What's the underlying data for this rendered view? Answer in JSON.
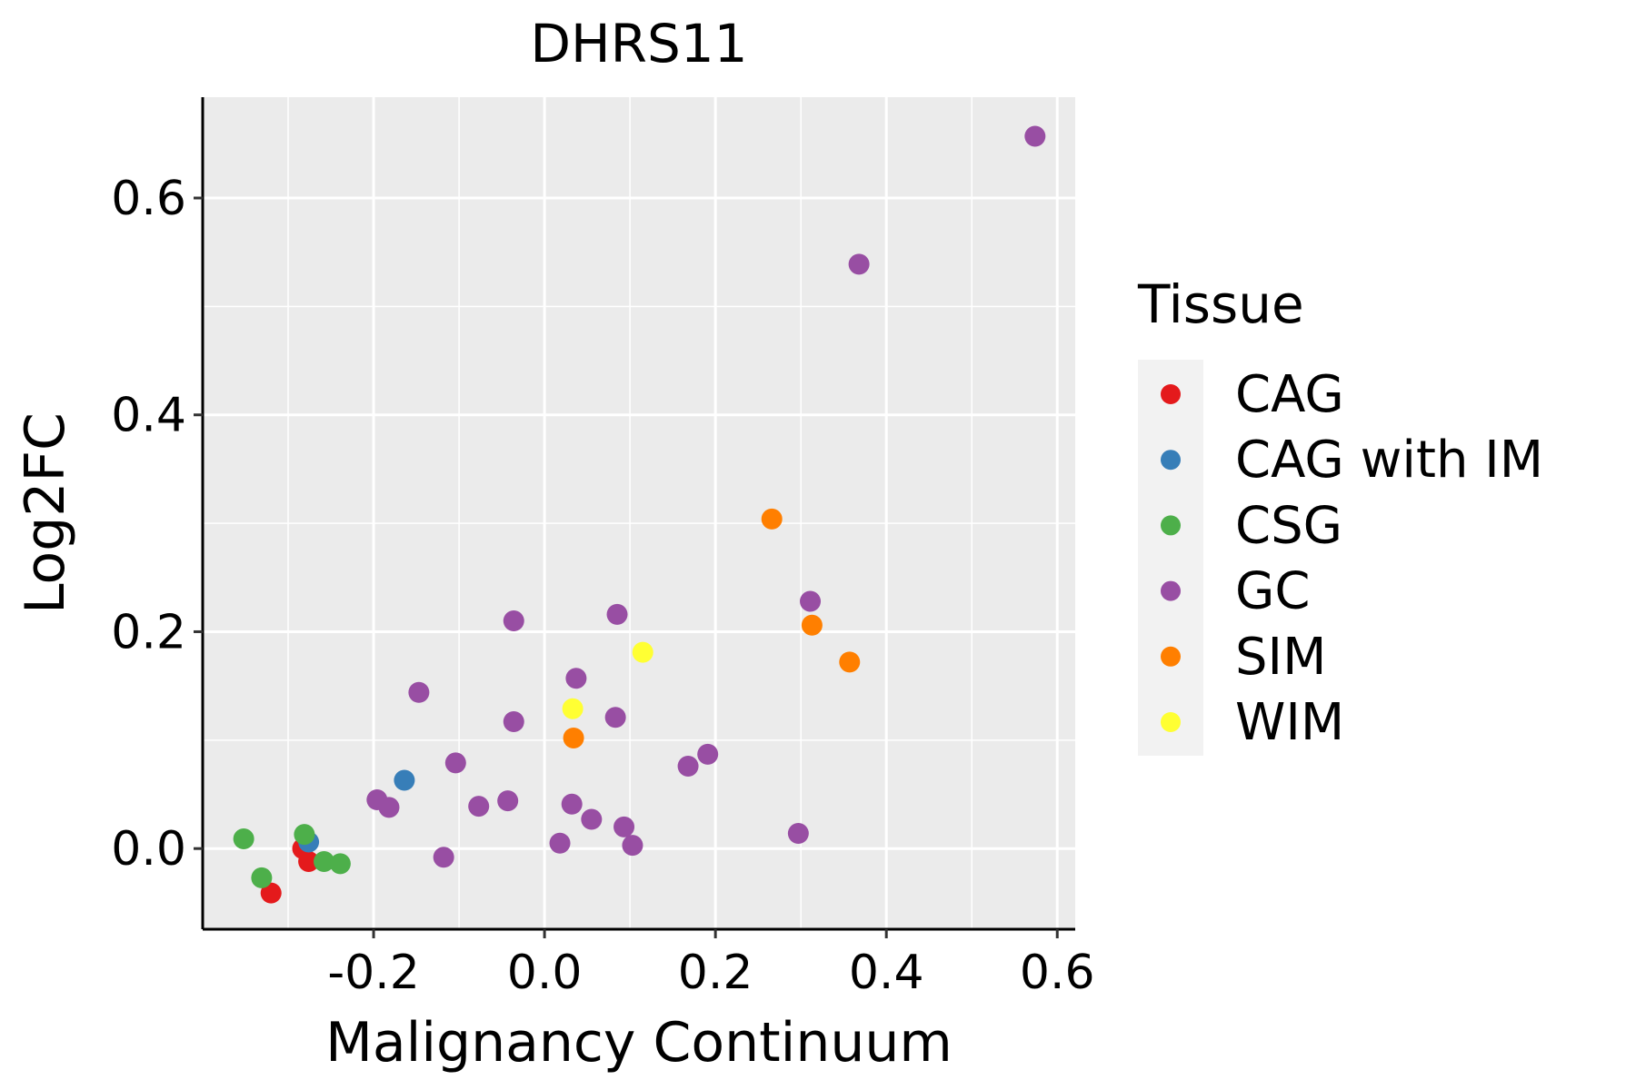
{
  "chart_data": {
    "type": "scatter",
    "title": "DHRS11",
    "xlabel": "Malignancy Continuum",
    "ylabel": "Log2FC",
    "xlim": [
      -0.4,
      0.621
    ],
    "ylim": [
      -0.0744,
      0.693
    ],
    "xticks": [
      -0.2,
      0.0,
      0.2,
      0.4,
      0.6
    ],
    "xtick_labels": [
      "-0.2",
      "0.0",
      "0.2",
      "0.4",
      "0.6"
    ],
    "yticks": [
      0.0,
      0.2,
      0.4,
      0.6
    ],
    "ytick_labels": [
      "0.0",
      "0.2",
      "0.4",
      "0.6"
    ],
    "grid": true,
    "legend": {
      "title": "Tissue",
      "placement": "right"
    },
    "series": [
      {
        "name": "CAG",
        "color": "#E41A1C",
        "points": [
          [
            -0.283,
            0.0
          ],
          [
            -0.276,
            -0.012
          ],
          [
            -0.32,
            -0.041
          ]
        ]
      },
      {
        "name": "CAG with IM",
        "color": "#377EB8",
        "points": [
          [
            -0.164,
            0.063
          ],
          [
            -0.276,
            0.006
          ]
        ]
      },
      {
        "name": "CSG",
        "color": "#4DAF4A",
        "points": [
          [
            -0.352,
            0.009
          ],
          [
            -0.281,
            0.013
          ],
          [
            -0.331,
            -0.027
          ],
          [
            -0.258,
            -0.012
          ],
          [
            -0.239,
            -0.014
          ]
        ]
      },
      {
        "name": "GC",
        "color": "#984EA3",
        "points": [
          [
            0.574,
            0.657
          ],
          [
            0.368,
            0.539
          ],
          [
            0.311,
            0.228
          ],
          [
            0.085,
            0.216
          ],
          [
            -0.036,
            0.21
          ],
          [
            0.037,
            0.157
          ],
          [
            -0.147,
            0.144
          ],
          [
            -0.036,
            0.117
          ],
          [
            0.083,
            0.121
          ],
          [
            -0.104,
            0.079
          ],
          [
            0.191,
            0.087
          ],
          [
            0.168,
            0.076
          ],
          [
            -0.196,
            0.045
          ],
          [
            -0.182,
            0.038
          ],
          [
            -0.077,
            0.039
          ],
          [
            -0.043,
            0.044
          ],
          [
            0.032,
            0.041
          ],
          [
            0.055,
            0.027
          ],
          [
            0.093,
            0.02
          ],
          [
            0.018,
            0.005
          ],
          [
            0.103,
            0.003
          ],
          [
            0.297,
            0.014
          ],
          [
            -0.118,
            -0.008
          ]
        ]
      },
      {
        "name": "SIM",
        "color": "#FF7F00",
        "points": [
          [
            0.266,
            0.304
          ],
          [
            0.313,
            0.206
          ],
          [
            0.357,
            0.172
          ],
          [
            0.034,
            0.102
          ]
        ]
      },
      {
        "name": "WIM",
        "color": "#FFFF33",
        "points": [
          [
            0.115,
            0.181
          ],
          [
            0.033,
            0.129
          ]
        ]
      }
    ]
  }
}
